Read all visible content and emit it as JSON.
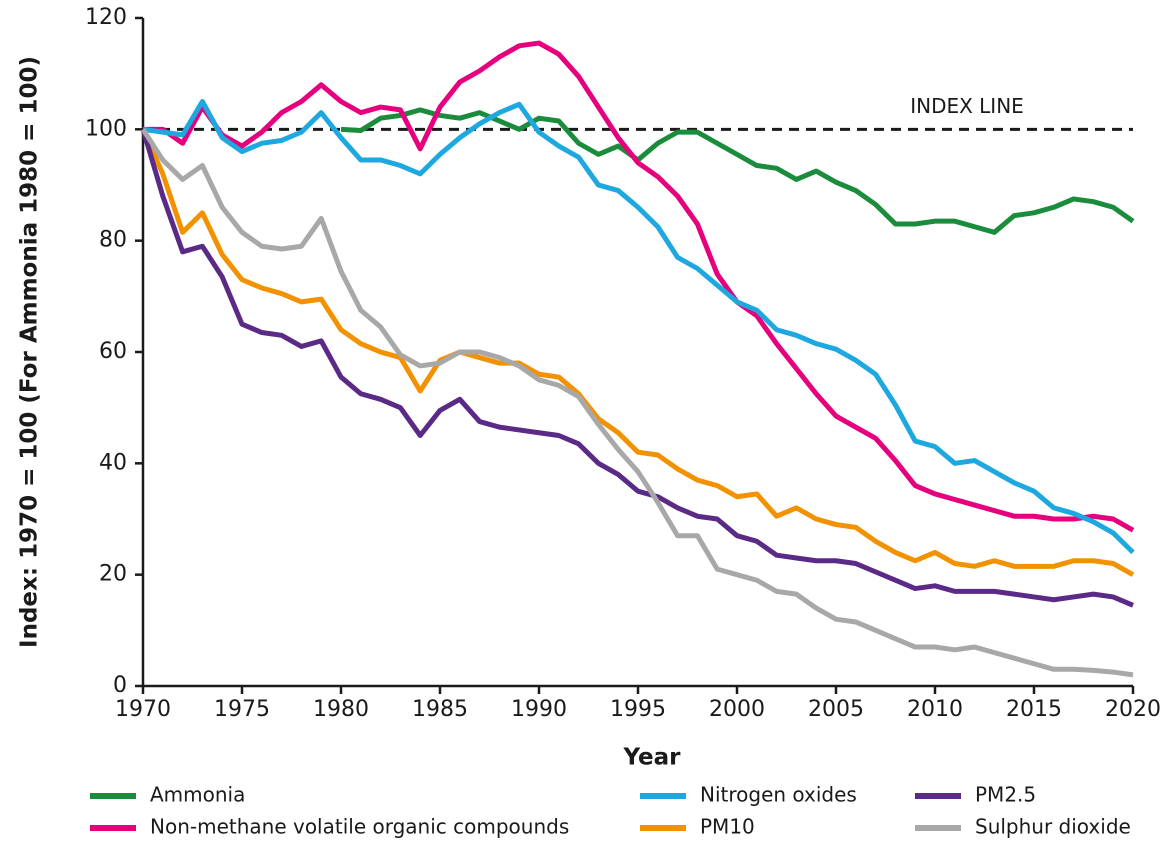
{
  "chart_data": {
    "type": "line",
    "xlabel": "Year",
    "ylabel": "Index: 1970 = 100 (For Ammonia 1980 = 100)",
    "index_line": {
      "label": "INDEX LINE",
      "value": 100
    },
    "x": [
      1970,
      1971,
      1972,
      1973,
      1974,
      1975,
      1976,
      1977,
      1978,
      1979,
      1980,
      1981,
      1982,
      1983,
      1984,
      1985,
      1986,
      1987,
      1988,
      1989,
      1990,
      1991,
      1992,
      1993,
      1994,
      1995,
      1996,
      1997,
      1998,
      1999,
      2000,
      2001,
      2002,
      2003,
      2004,
      2005,
      2006,
      2007,
      2008,
      2009,
      2010,
      2011,
      2012,
      2013,
      2014,
      2015,
      2016,
      2017,
      2018,
      2019,
      2020
    ],
    "xlim": [
      1970,
      2020
    ],
    "xticks": [
      1970,
      1975,
      1980,
      1985,
      1990,
      1995,
      2000,
      2005,
      2010,
      2015,
      2020
    ],
    "ylim": [
      0,
      120
    ],
    "yticks": [
      0,
      20,
      40,
      60,
      80,
      100,
      120
    ],
    "series": [
      {
        "name": "Ammonia",
        "color": "#1a8c3c",
        "values": [
          null,
          null,
          null,
          null,
          null,
          null,
          null,
          null,
          null,
          null,
          100,
          99.8,
          102,
          102.5,
          103.5,
          102.5,
          102,
          103,
          101.5,
          100,
          102,
          101.5,
          97.5,
          95.5,
          97,
          94.5,
          97.5,
          99.5,
          99.5,
          97.5,
          95.5,
          93.5,
          93,
          91,
          92.5,
          90.5,
          89,
          86.5,
          83,
          83,
          83.5,
          83.5,
          82.5,
          81.5,
          84.5,
          85,
          86,
          87.5,
          87,
          86,
          83.5
        ]
      },
      {
        "name": "Non-methane volatile organic compounds",
        "color": "#e6007e",
        "values": [
          100,
          100,
          97.5,
          104,
          99,
          97,
          99.5,
          103,
          105,
          108,
          105,
          103,
          104,
          103.5,
          96.5,
          104,
          108.5,
          110.5,
          113,
          115,
          115.5,
          113.5,
          109.5,
          104,
          98.5,
          94,
          91.5,
          88,
          83,
          74,
          69,
          66.5,
          61.5,
          57,
          52.5,
          48.5,
          46.5,
          44.5,
          40.5,
          36,
          34.5,
          33.5,
          32.5,
          31.5,
          30.5,
          30.5,
          30,
          30,
          30.5,
          30,
          28
        ]
      },
      {
        "name": "Nitrogen oxides",
        "color": "#1ea8e0",
        "values": [
          100,
          99.5,
          99,
          105,
          98.5,
          96,
          97.5,
          98,
          99.5,
          103,
          98.5,
          94.5,
          94.5,
          93.5,
          92,
          95.5,
          98.5,
          101,
          103,
          104.5,
          99.5,
          97,
          95,
          90,
          89,
          86,
          82.5,
          77,
          75,
          72,
          69,
          67.5,
          64,
          63,
          61.5,
          60.5,
          58.5,
          56,
          50.5,
          44,
          43,
          40,
          40.5,
          38.5,
          36.5,
          35,
          32,
          31,
          29.5,
          27.5,
          24
        ]
      },
      {
        "name": "PM10",
        "color": "#f39200",
        "values": [
          100,
          92,
          81.5,
          85,
          77.5,
          73,
          71.5,
          70.5,
          69,
          69.5,
          64,
          61.5,
          60,
          59,
          53,
          58.5,
          60,
          59,
          58,
          58,
          56,
          55.5,
          52.5,
          48,
          45.5,
          42,
          41.5,
          39,
          37,
          36,
          34,
          34.5,
          30.5,
          32,
          30,
          29,
          28.5,
          26,
          24,
          22.5,
          24,
          22,
          21.5,
          22.5,
          21.5,
          21.5,
          21.5,
          22.5,
          22.5,
          22,
          20
        ]
      },
      {
        "name": "PM2.5",
        "color": "#5b2a86",
        "values": [
          100,
          88,
          78,
          79,
          73.5,
          65,
          63.5,
          63,
          61,
          62,
          55.5,
          52.5,
          51.5,
          50,
          45,
          49.5,
          51.5,
          47.5,
          46.5,
          46,
          45.5,
          45,
          43.5,
          40,
          38,
          35,
          34,
          32,
          30.5,
          30,
          27,
          26,
          23.5,
          23,
          22.5,
          22.5,
          22,
          20.5,
          19,
          17.5,
          18,
          17,
          17,
          17,
          16.5,
          16,
          15.5,
          16,
          16.5,
          16,
          14.5
        ]
      },
      {
        "name": "Sulphur dioxide",
        "color": "#a8a8a8",
        "values": [
          100,
          94.5,
          91,
          93.5,
          86,
          81.5,
          79,
          78.5,
          79,
          84,
          74.5,
          67.5,
          64.5,
          59.5,
          57.5,
          58,
          60,
          60,
          59,
          57.5,
          55,
          54,
          52,
          47,
          42.5,
          38.5,
          33,
          27,
          27,
          21,
          20,
          19,
          17,
          16.5,
          14,
          12,
          11.5,
          10,
          8.5,
          7,
          7,
          6.5,
          7,
          6,
          5,
          4,
          3,
          3,
          2.8,
          2.5,
          2
        ]
      }
    ]
  }
}
